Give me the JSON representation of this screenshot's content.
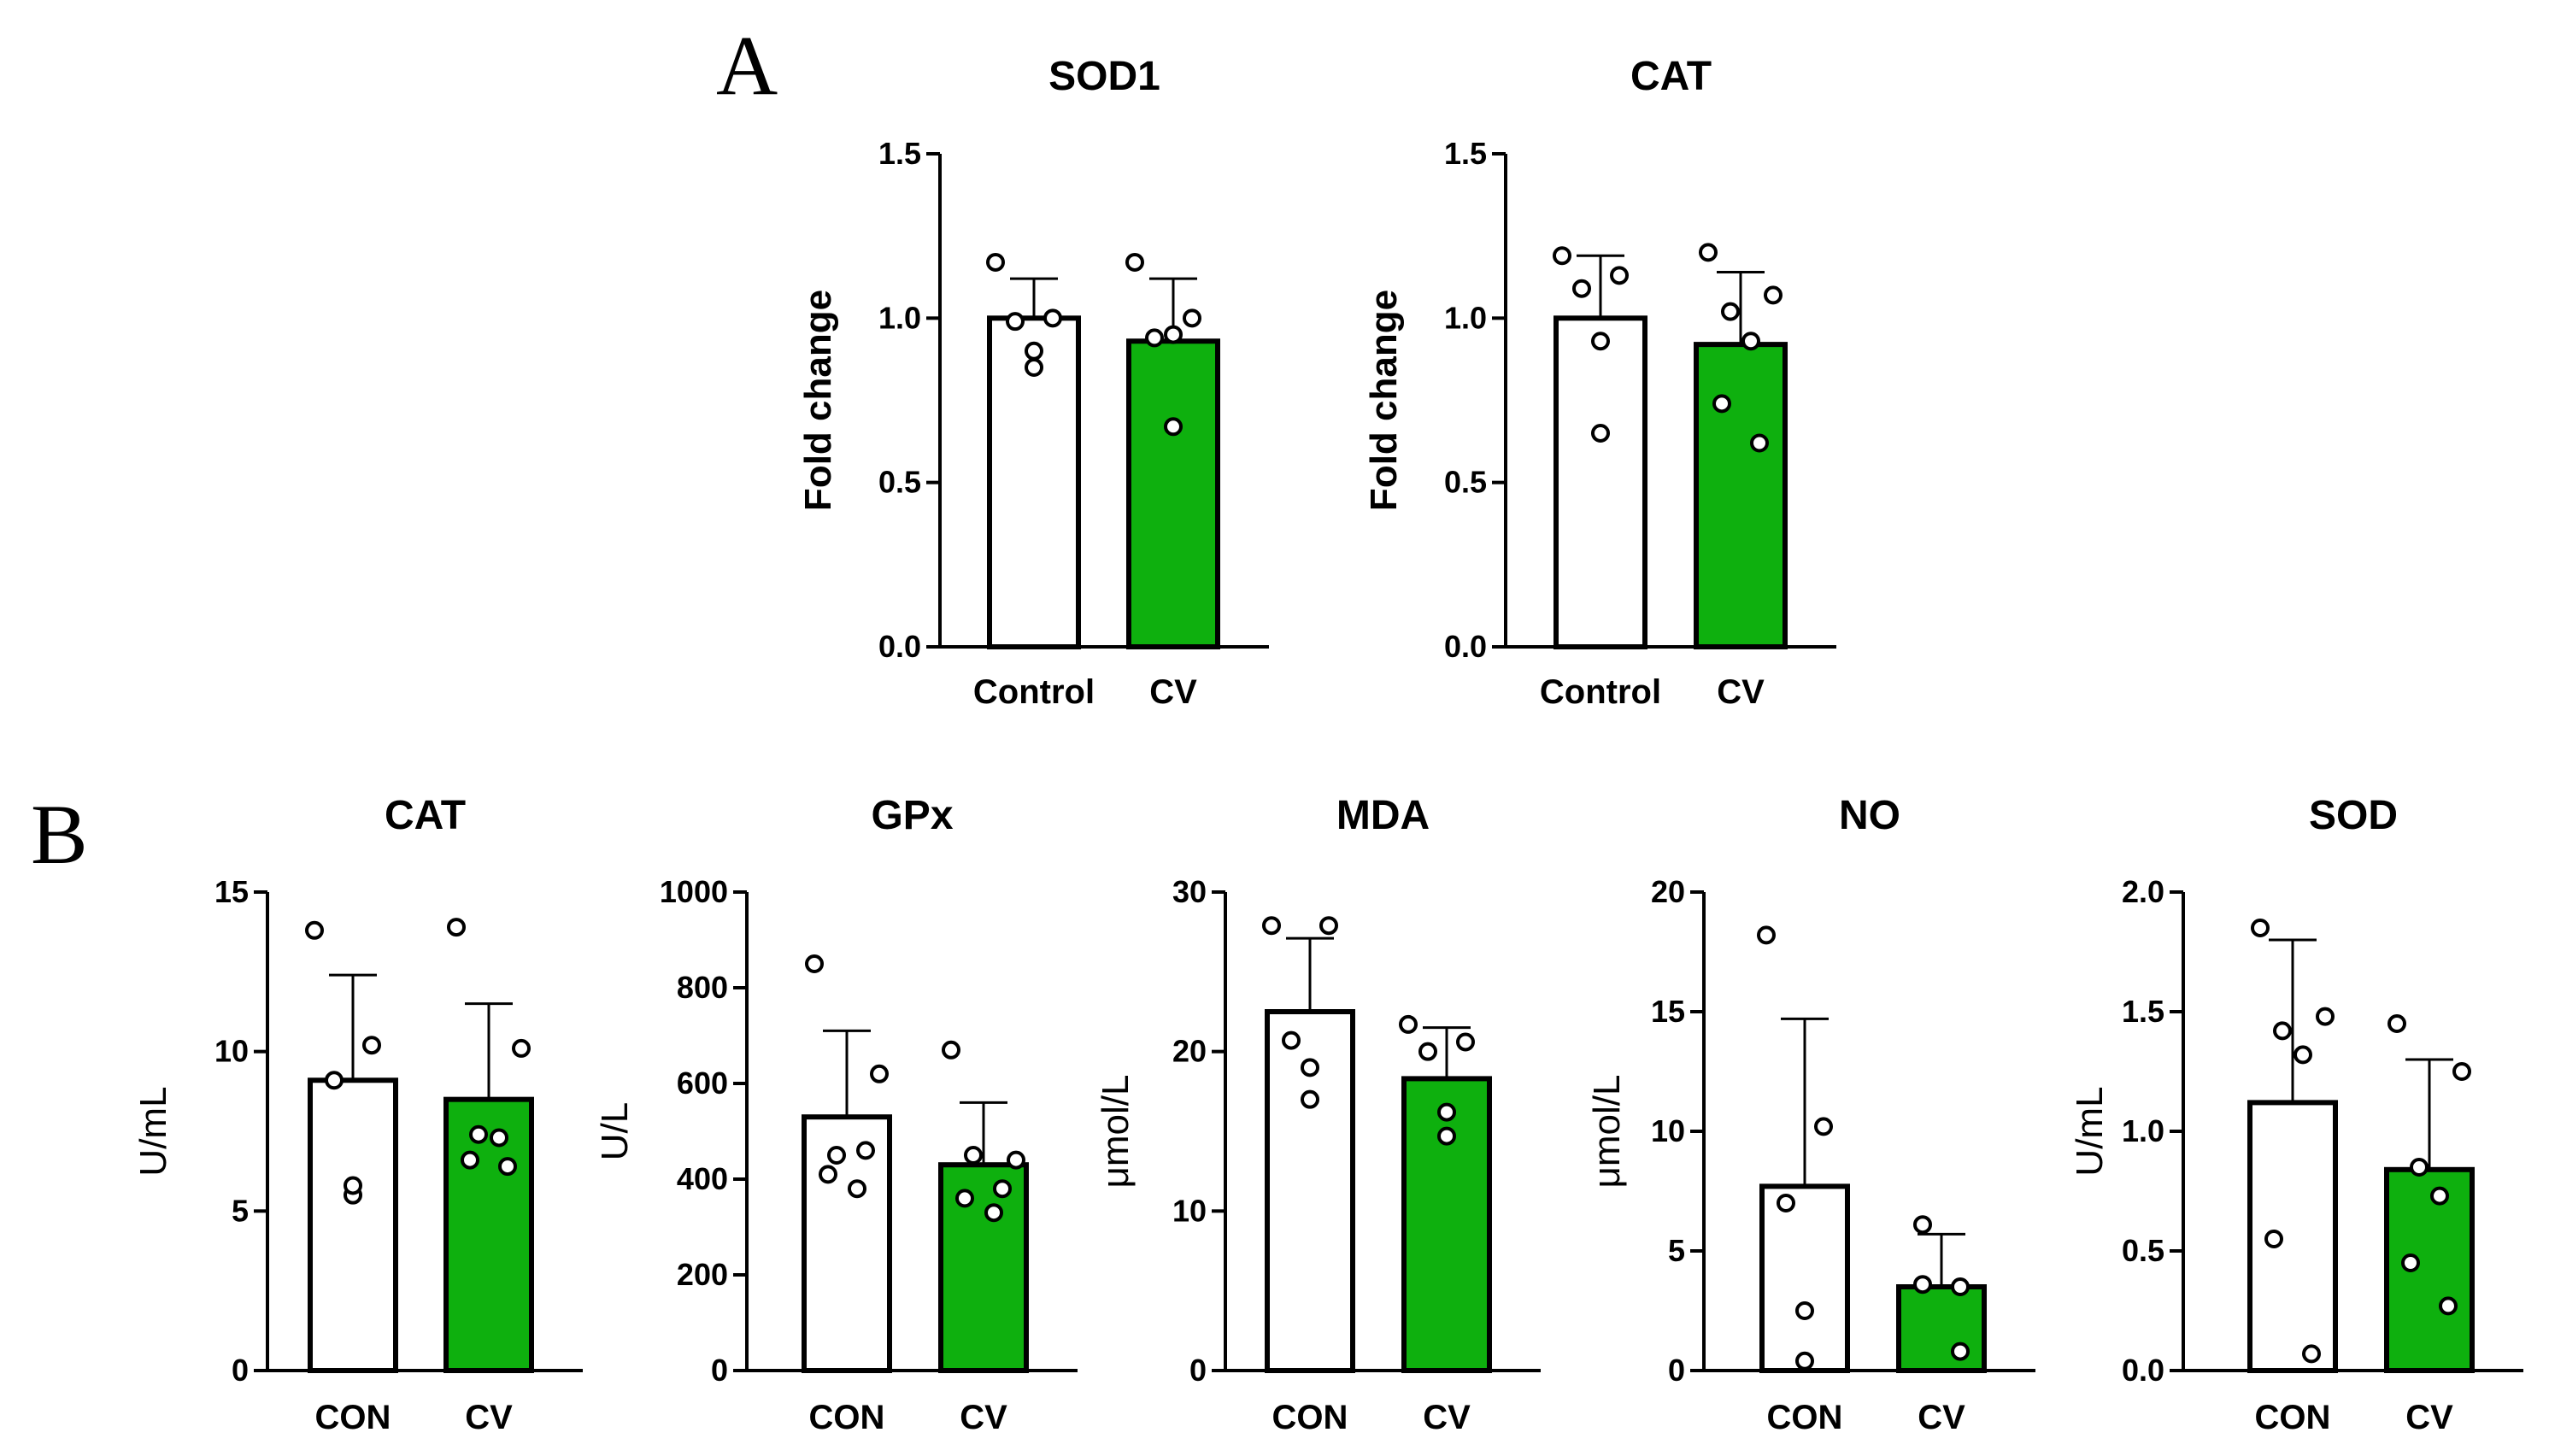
{
  "panel_labels": {
    "a": "A",
    "b": "B"
  },
  "colors": {
    "control": "#ffffff",
    "treatment": "#0eb00e",
    "stroke": "#000000"
  },
  "chart_data": [
    {
      "id": "a1",
      "type": "bar",
      "title": "SOD1",
      "ylabel": "Fold change",
      "categories": [
        "Control",
        "CV"
      ],
      "values": [
        1.0,
        0.93
      ],
      "errors": [
        0.12,
        0.19
      ],
      "ylim": [
        0,
        1.5
      ],
      "yticks": [
        "0.0",
        "0.5",
        "1.0",
        "1.5"
      ],
      "tickvals": [
        0,
        0.5,
        1.0,
        1.5
      ],
      "points": [
        [
          1.17,
          1.0,
          0.99,
          0.9,
          0.85
        ],
        [
          1.17,
          1.0,
          0.94,
          0.95,
          0.67
        ]
      ]
    },
    {
      "id": "a2",
      "type": "bar",
      "title": "CAT",
      "ylabel": "Fold change",
      "categories": [
        "Control",
        "CV"
      ],
      "values": [
        1.0,
        0.92
      ],
      "errors": [
        0.19,
        0.22
      ],
      "ylim": [
        0,
        1.5
      ],
      "yticks": [
        "0.0",
        "0.5",
        "1.0",
        "1.5"
      ],
      "tickvals": [
        0,
        0.5,
        1.0,
        1.5
      ],
      "points": [
        [
          1.19,
          1.13,
          1.09,
          0.93,
          0.65
        ],
        [
          1.2,
          1.07,
          1.02,
          0.93,
          0.74,
          0.62
        ]
      ]
    },
    {
      "id": "b1",
      "type": "bar",
      "title": "CAT",
      "ylabel": "U/mL",
      "categories": [
        "CON",
        "CV"
      ],
      "values": [
        9.1,
        8.5
      ],
      "errors": [
        3.3,
        3.0
      ],
      "ylim": [
        0,
        15
      ],
      "yticks": [
        "0",
        "5",
        "10",
        "15"
      ],
      "tickvals": [
        0,
        5,
        10,
        15
      ],
      "points": [
        [
          13.8,
          10.2,
          9.1,
          5.5,
          5.8
        ],
        [
          13.9,
          10.1,
          7.4,
          7.3,
          6.6,
          6.4
        ]
      ]
    },
    {
      "id": "b2",
      "type": "bar",
      "title": "GPx",
      "ylabel": "U/L",
      "categories": [
        "CON",
        "CV"
      ],
      "values": [
        530,
        430
      ],
      "errors": [
        180,
        130
      ],
      "ylim": [
        0,
        1000
      ],
      "yticks": [
        "0",
        "200",
        "400",
        "600",
        "800",
        "1000"
      ],
      "tickvals": [
        0,
        200,
        400,
        600,
        800,
        1000
      ],
      "points": [
        [
          850,
          620,
          450,
          380,
          410,
          460
        ],
        [
          670,
          440,
          450,
          330,
          360,
          380
        ]
      ]
    },
    {
      "id": "b3",
      "type": "bar",
      "title": "MDA",
      "ylabel": "μmol/L",
      "categories": [
        "CON",
        "CV"
      ],
      "values": [
        22.5,
        18.3
      ],
      "errors": [
        4.6,
        3.2
      ],
      "ylim": [
        0,
        30
      ],
      "yticks": [
        "0",
        "10",
        "20",
        "30"
      ],
      "tickvals": [
        0,
        10,
        20,
        30
      ],
      "points": [
        [
          27.9,
          27.9,
          20.7,
          19.0,
          17.0
        ],
        [
          21.7,
          20.6,
          20.0,
          16.2,
          14.7
        ]
      ]
    },
    {
      "id": "b4",
      "type": "bar",
      "title": "NO",
      "ylabel": "μmol/L",
      "categories": [
        "CON",
        "CV"
      ],
      "values": [
        7.7,
        3.5
      ],
      "errors": [
        7.0,
        2.2
      ],
      "ylim": [
        0,
        20
      ],
      "yticks": [
        "0",
        "5",
        "10",
        "15",
        "20"
      ],
      "tickvals": [
        0,
        5,
        10,
        15,
        20
      ],
      "points": [
        [
          18.2,
          10.2,
          7.0,
          2.5,
          0.4
        ],
        [
          6.1,
          3.5,
          3.6,
          0.8
        ]
      ]
    },
    {
      "id": "b5",
      "type": "bar",
      "title": "SOD",
      "ylabel": "U/mL",
      "categories": [
        "CON",
        "CV"
      ],
      "values": [
        1.12,
        0.84
      ],
      "errors": [
        0.68,
        0.46
      ],
      "ylim": [
        0,
        2.0
      ],
      "yticks": [
        "0.0",
        "0.5",
        "1.0",
        "1.5",
        "2.0"
      ],
      "tickvals": [
        0,
        0.5,
        1.0,
        1.5,
        2.0
      ],
      "points": [
        [
          1.85,
          1.48,
          1.42,
          1.32,
          0.55,
          0.07
        ],
        [
          1.45,
          1.25,
          0.85,
          0.73,
          0.45,
          0.27
        ]
      ]
    }
  ]
}
